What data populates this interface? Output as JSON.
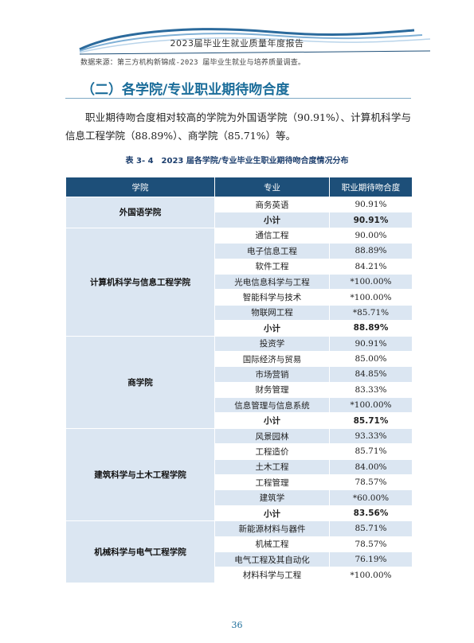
{
  "header": {
    "report_title": "2023届毕业生就业质量年度报告"
  },
  "source_note": "数据来源：第三方机构新锦成-2023 届毕业生就业与培养质量调查。",
  "section": {
    "heading": "（二）各学院/专业职业期待吻合度"
  },
  "paragraph": "职业期待吻合度相对较高的学院为外国语学院（90.91%）、计算机科学与信息工程学院（88.89%）、商学院（85.71%）等。",
  "table": {
    "caption": "表 3- 4　2023 届各学院/专业毕业生职业期待吻合度情况分布",
    "headers": [
      "学院",
      "专业",
      "职业期待吻合度"
    ],
    "groups": [
      {
        "college": "外国语学院",
        "rows": [
          {
            "major": "商务英语",
            "rate": "90.91%"
          },
          {
            "major": "小计",
            "rate": "90.91%",
            "subtotal": true
          }
        ]
      },
      {
        "college": "计算机科学与信息工程学院",
        "rows": [
          {
            "major": "通信工程",
            "rate": "90.00%"
          },
          {
            "major": "电子信息工程",
            "rate": "88.89%"
          },
          {
            "major": "软件工程",
            "rate": "84.21%"
          },
          {
            "major": "光电信息科学与工程",
            "rate": "*100.00%"
          },
          {
            "major": "智能科学与技术",
            "rate": "*100.00%"
          },
          {
            "major": "物联网工程",
            "rate": "*85.71%"
          },
          {
            "major": "小计",
            "rate": "88.89%",
            "subtotal": true
          }
        ]
      },
      {
        "college": "商学院",
        "rows": [
          {
            "major": "投资学",
            "rate": "90.91%"
          },
          {
            "major": "国际经济与贸易",
            "rate": "85.00%"
          },
          {
            "major": "市场营销",
            "rate": "84.85%"
          },
          {
            "major": "财务管理",
            "rate": "83.33%"
          },
          {
            "major": "信息管理与信息系统",
            "rate": "*100.00%"
          },
          {
            "major": "小计",
            "rate": "85.71%",
            "subtotal": true
          }
        ]
      },
      {
        "college": "建筑科学与土木工程学院",
        "rows": [
          {
            "major": "风景园林",
            "rate": "93.33%"
          },
          {
            "major": "工程造价",
            "rate": "85.71%"
          },
          {
            "major": "土木工程",
            "rate": "84.00%"
          },
          {
            "major": "工程管理",
            "rate": "78.57%"
          },
          {
            "major": "建筑学",
            "rate": "*60.00%"
          },
          {
            "major": "小计",
            "rate": "83.56%",
            "subtotal": true
          }
        ]
      },
      {
        "college": "机械科学与电气工程学院",
        "rows": [
          {
            "major": "新能源材料与器件",
            "rate": "85.71%"
          },
          {
            "major": "机械工程",
            "rate": "78.57%"
          },
          {
            "major": "电气工程及其自动化",
            "rate": "76.19%"
          },
          {
            "major": "材料科学与工程",
            "rate": "*100.00%"
          }
        ]
      }
    ]
  },
  "page_number": "36",
  "colors": {
    "header_bg": "#1d4f79",
    "row_blue": "#dbe6f2",
    "heading": "#1b6d9a"
  }
}
